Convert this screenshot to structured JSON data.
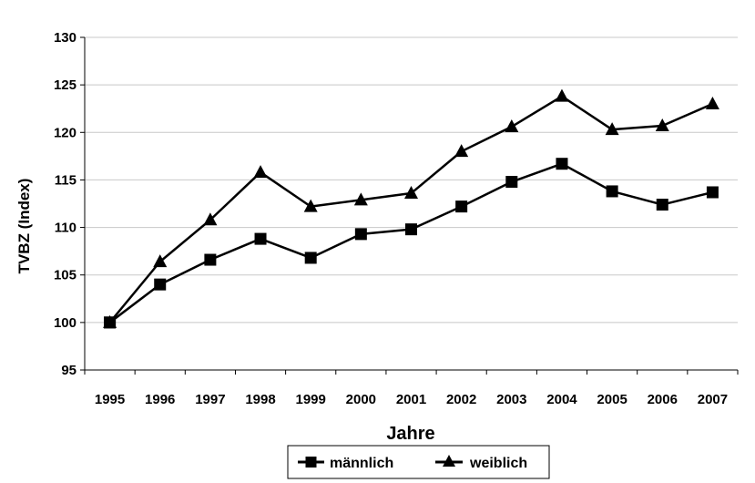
{
  "chart_data": {
    "type": "line",
    "title": "",
    "xlabel": "Jahre",
    "ylabel": "TVBZ (Index)",
    "categories": [
      "1995",
      "1996",
      "1997",
      "1998",
      "1999",
      "2000",
      "2001",
      "2002",
      "2003",
      "2004",
      "2005",
      "2006",
      "2007"
    ],
    "ylim": [
      95,
      130
    ],
    "yticks": [
      95,
      100,
      105,
      110,
      115,
      120,
      125,
      130
    ],
    "grid": true,
    "legend": "bottom",
    "series": [
      {
        "name": "männlich",
        "marker": "square",
        "color": "#000000",
        "values": [
          100,
          104,
          106.6,
          108.8,
          106.8,
          109.3,
          109.8,
          112.2,
          114.8,
          116.7,
          113.8,
          112.4,
          113.7
        ]
      },
      {
        "name": "weiblich",
        "marker": "triangle",
        "color": "#000000",
        "values": [
          100,
          106.4,
          110.8,
          115.8,
          112.2,
          112.9,
          113.6,
          118.0,
          120.6,
          123.8,
          120.3,
          120.7,
          123.0
        ]
      }
    ]
  }
}
